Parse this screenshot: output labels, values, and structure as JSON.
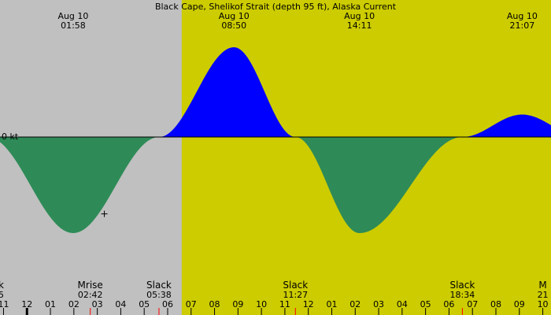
{
  "chart_data": {
    "type": "area",
    "title": "Black Cape, Shelikof Strait (depth 95 ft), Alaska Current",
    "zero_label": "0 kt",
    "colors": {
      "night": "#c0c0c0",
      "day": "#cccc00",
      "flood": "#0000ff",
      "ebb": "#2e8b57",
      "axis": "#000000",
      "moon_tick": "#ff0000"
    },
    "daylight": {
      "start": 6.6
    },
    "events": [
      {
        "date": "Aug 10",
        "time": "01:58",
        "hour": 1.97,
        "type": "max_ebb",
        "value": -1.0
      },
      {
        "date": "Aug 10",
        "time": "08:50",
        "hour": 8.83,
        "type": "max_flood",
        "value": 0.92
      },
      {
        "date": "Aug 10",
        "time": "14:11",
        "hour": 14.18,
        "type": "max_ebb",
        "value": -1.0
      },
      {
        "date": "Aug 10",
        "time": "21:07",
        "hour": 21.12,
        "type": "max_flood",
        "value": 0.23
      }
    ],
    "slack": [
      {
        "label": "Slack",
        "time": "05:38",
        "hour": 5.63
      },
      {
        "label": "Slack",
        "time": "11:27",
        "hour": 11.45
      },
      {
        "label": "Slack",
        "time": "18:34",
        "hour": 18.57
      }
    ],
    "bottom_labels": [
      {
        "label": "k",
        "time": "5",
        "hour": -1.1
      },
      {
        "label": "Mrise",
        "time": "02:42",
        "hour": 2.7
      },
      {
        "label": "M",
        "time": "21",
        "hour": 22.0
      }
    ],
    "moon_ticks": [
      2.7,
      5.63,
      11.45,
      18.57
    ],
    "x_ticks": [
      {
        "hour": -1,
        "label": "11"
      },
      {
        "hour": 0,
        "label": "12"
      },
      {
        "hour": 1,
        "label": "01"
      },
      {
        "hour": 2,
        "label": "02"
      },
      {
        "hour": 3,
        "label": "03"
      },
      {
        "hour": 4,
        "label": "04"
      },
      {
        "hour": 5,
        "label": "05"
      },
      {
        "hour": 6,
        "label": "06"
      },
      {
        "hour": 7,
        "label": "07"
      },
      {
        "hour": 8,
        "label": "08"
      },
      {
        "hour": 9,
        "label": "09"
      },
      {
        "hour": 10,
        "label": "10"
      },
      {
        "hour": 11,
        "label": "11"
      },
      {
        "hour": 12,
        "label": "12"
      },
      {
        "hour": 13,
        "label": "01"
      },
      {
        "hour": 14,
        "label": "02"
      },
      {
        "hour": 15,
        "label": "03"
      },
      {
        "hour": 16,
        "label": "04"
      },
      {
        "hour": 17,
        "label": "05"
      },
      {
        "hour": 18,
        "label": "06"
      },
      {
        "hour": 19,
        "label": "07"
      },
      {
        "hour": 20,
        "label": "08"
      },
      {
        "hour": 21,
        "label": "09"
      },
      {
        "hour": 22,
        "label": "10"
      }
    ],
    "xlim": [
      -1.15,
      22.35
    ],
    "ylim": [
      -1.0,
      0.92
    ],
    "crosshair": {
      "hour": 3.3,
      "value": -0.8
    }
  }
}
